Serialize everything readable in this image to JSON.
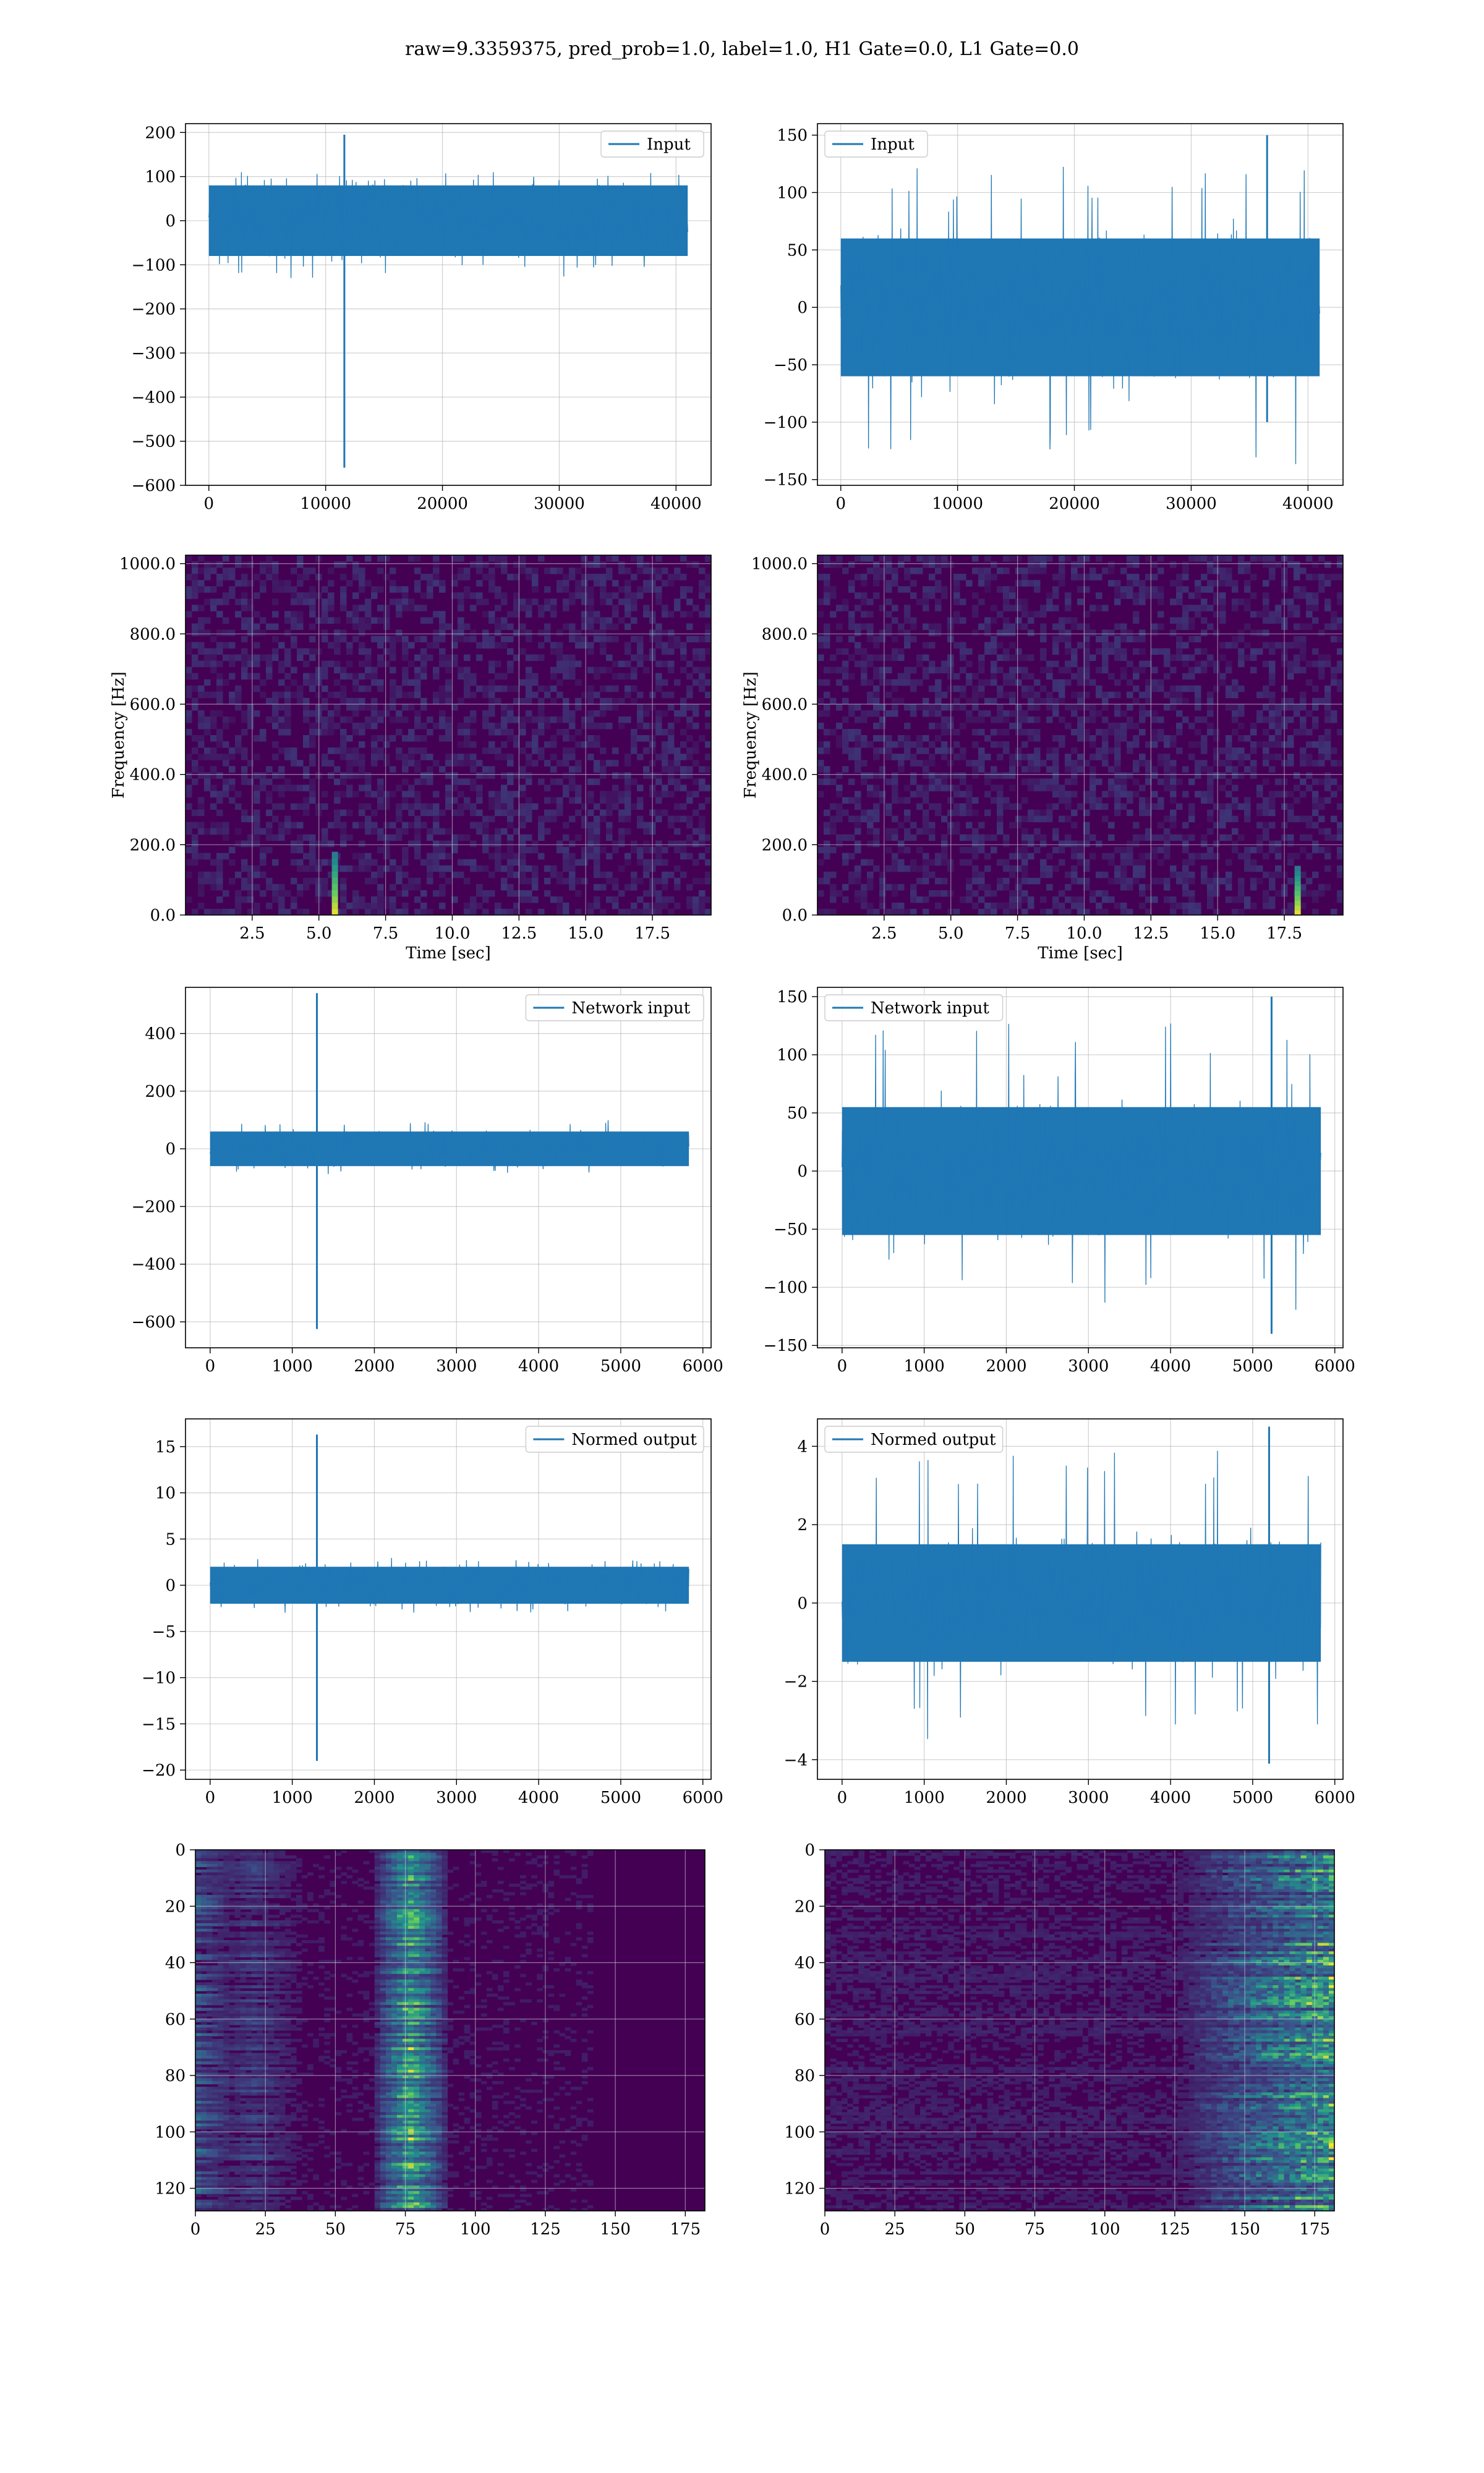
{
  "figure": {
    "suptitle": "raw=9.3359375, pred_prob=1.0, label=1.0, H1 Gate=0.0, L1 Gate=0.0"
  },
  "colors": {
    "line": "#1f77b4",
    "grid": "#b0b0b0",
    "spectrogram_bg": "#440154",
    "viridis_low": "#440154",
    "viridis_mid": "#21918c",
    "viridis_high": "#fde725"
  },
  "chart_data": [
    {
      "id": "h1-input",
      "type": "line",
      "legend": [
        "Input"
      ],
      "legend_position": "upper right",
      "xlim": [
        -2000,
        43000
      ],
      "ylim": [
        -600,
        220
      ],
      "xticks": [
        0,
        10000,
        20000,
        30000,
        40000
      ],
      "yticks": [
        -600,
        -500,
        -400,
        -300,
        -200,
        -100,
        0,
        100,
        200
      ],
      "noise_band": {
        "x": [
          0,
          41000
        ],
        "amplitude": 80,
        "peaks": [
          110,
          -130
        ]
      },
      "spike": {
        "x": 11600,
        "max": 195,
        "min": -560
      },
      "grid": true
    },
    {
      "id": "l1-input",
      "type": "line",
      "legend": [
        "Input"
      ],
      "legend_position": "upper left",
      "xlim": [
        -2000,
        43000
      ],
      "ylim": [
        -155,
        160
      ],
      "xticks": [
        0,
        10000,
        20000,
        30000,
        40000
      ],
      "yticks": [
        -150,
        -100,
        -50,
        0,
        50,
        100,
        150
      ],
      "noise_band": {
        "x": [
          0,
          41000
        ],
        "amplitude": 60,
        "peaks": [
          125,
          -140
        ]
      },
      "spike": {
        "x": 36500,
        "max": 150,
        "min": -100
      },
      "grid": true
    },
    {
      "id": "h1-spectrogram",
      "type": "heatmap",
      "xlabel": "Time [sec]",
      "ylabel": "Frequency [Hz]",
      "xlim": [
        0,
        19.7
      ],
      "ylim": [
        0,
        1024
      ],
      "xticks": [
        2.5,
        5.0,
        7.5,
        10.0,
        12.5,
        15.0,
        17.5
      ],
      "yticks": [
        0,
        200,
        400,
        600,
        800,
        1000
      ],
      "hotspot": {
        "t": 5.6,
        "f_max": 180
      },
      "grid": true
    },
    {
      "id": "l1-spectrogram",
      "type": "heatmap",
      "xlabel": "Time [sec]",
      "ylabel": "Frequency [Hz]",
      "xlim": [
        0,
        19.7
      ],
      "ylim": [
        0,
        1024
      ],
      "xticks": [
        2.5,
        5.0,
        7.5,
        10.0,
        12.5,
        15.0,
        17.5
      ],
      "yticks": [
        0,
        200,
        400,
        600,
        800,
        1000
      ],
      "hotspot": {
        "t": 18.0,
        "f_max": 140
      },
      "grid": true
    },
    {
      "id": "h1-network-input",
      "type": "line",
      "legend": [
        "Network input"
      ],
      "legend_position": "upper right",
      "xlim": [
        -300,
        6100
      ],
      "ylim": [
        -690,
        560
      ],
      "xticks": [
        0,
        1000,
        2000,
        3000,
        4000,
        5000,
        6000
      ],
      "yticks": [
        -600,
        -400,
        -200,
        0,
        200,
        400
      ],
      "noise_band": {
        "x": [
          0,
          5830
        ],
        "amplitude": 60,
        "peaks": [
          100,
          -90
        ]
      },
      "spike": {
        "x": 1300,
        "max": 540,
        "min": -625
      },
      "grid": true
    },
    {
      "id": "l1-network-input",
      "type": "line",
      "legend": [
        "Network input"
      ],
      "legend_position": "upper left",
      "xlim": [
        -300,
        6100
      ],
      "ylim": [
        -152,
        158
      ],
      "xticks": [
        0,
        1000,
        2000,
        3000,
        4000,
        5000,
        6000
      ],
      "yticks": [
        -150,
        -100,
        -50,
        0,
        50,
        100,
        150
      ],
      "noise_band": {
        "x": [
          0,
          5830
        ],
        "amplitude": 55,
        "peaks": [
          130,
          -120
        ]
      },
      "spike": {
        "x": 5230,
        "max": 150,
        "min": -140
      },
      "grid": true
    },
    {
      "id": "h1-normed-output",
      "type": "line",
      "legend": [
        "Normed output"
      ],
      "legend_position": "upper right",
      "xlim": [
        -300,
        6100
      ],
      "ylim": [
        -21,
        18
      ],
      "xticks": [
        0,
        1000,
        2000,
        3000,
        4000,
        5000,
        6000
      ],
      "yticks": [
        -20,
        -15,
        -10,
        -5,
        0,
        5,
        10,
        15
      ],
      "noise_band": {
        "x": [
          0,
          5830
        ],
        "amplitude": 2,
        "peaks": [
          3,
          -3
        ]
      },
      "spike": {
        "x": 1300,
        "max": 16.3,
        "min": -19
      },
      "grid": true
    },
    {
      "id": "l1-normed-output",
      "type": "line",
      "legend": [
        "Normed output"
      ],
      "legend_position": "upper left",
      "xlim": [
        -300,
        6100
      ],
      "ylim": [
        -4.5,
        4.7
      ],
      "xticks": [
        0,
        1000,
        2000,
        3000,
        4000,
        5000,
        6000
      ],
      "yticks": [
        -4,
        -2,
        0,
        2,
        4
      ],
      "noise_band": {
        "x": [
          0,
          5830
        ],
        "amplitude": 1.5,
        "peaks": [
          3.9,
          -3.5
        ]
      },
      "spike": {
        "x": 5200,
        "max": 4.5,
        "min": -4.1
      },
      "grid": true
    },
    {
      "id": "h1-feature-map",
      "type": "heatmap",
      "xlim": [
        0,
        182
      ],
      "ylim": [
        128,
        0
      ],
      "xticks": [
        0,
        25,
        50,
        75,
        100,
        125,
        150,
        175
      ],
      "yticks": [
        0,
        20,
        40,
        60,
        80,
        100,
        120
      ],
      "bright_column": 76,
      "grid": true
    },
    {
      "id": "l1-feature-map",
      "type": "heatmap",
      "xlim": [
        0,
        182
      ],
      "ylim": [
        128,
        0
      ],
      "xticks": [
        0,
        25,
        50,
        75,
        100,
        125,
        150,
        175
      ],
      "yticks": [
        0,
        20,
        40,
        60,
        80,
        100,
        120
      ],
      "bright_region": [
        150,
        182
      ],
      "grid": true
    }
  ]
}
